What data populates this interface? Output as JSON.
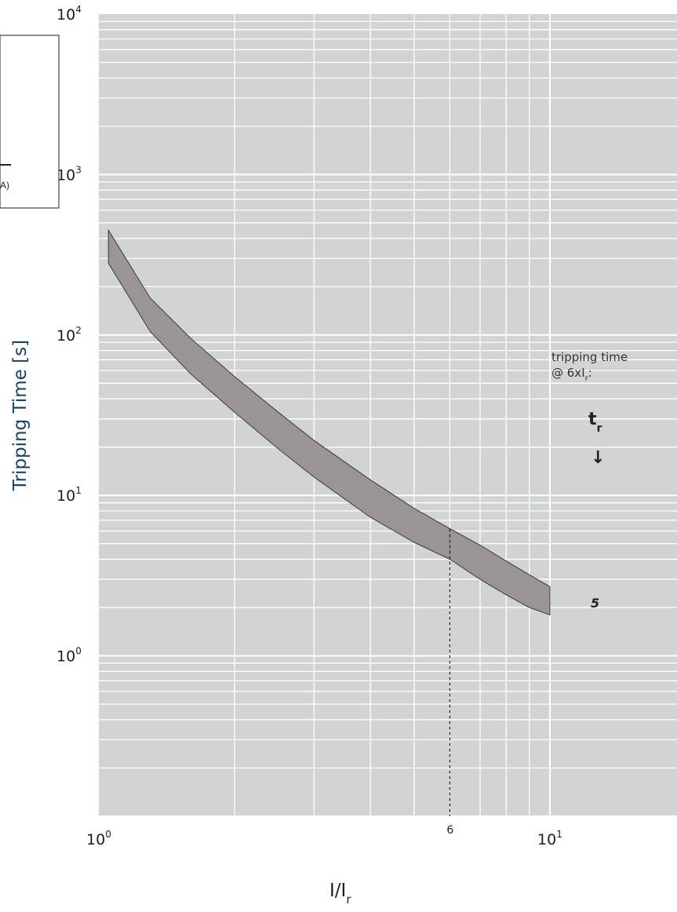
{
  "chart_data": {
    "type": "area",
    "title": "",
    "xscale": "log",
    "yscale": "log",
    "xlim": [
      1,
      28
    ],
    "ylim": [
      0.1,
      10000
    ],
    "grid": true,
    "xlabel": {
      "main": "I/I",
      "sub": "r"
    },
    "ylabel": "Tripping Time [s]",
    "x_ticks": [
      {
        "base": "10",
        "exp": "0",
        "value": 1
      },
      {
        "base": "10",
        "exp": "1",
        "value": 10
      }
    ],
    "y_ticks": [
      {
        "base": "10",
        "exp": "0",
        "value": 1
      },
      {
        "base": "10",
        "exp": "1",
        "value": 10
      },
      {
        "base": "10",
        "exp": "2",
        "value": 100
      },
      {
        "base": "10",
        "exp": "3",
        "value": 1000
      },
      {
        "base": "10",
        "exp": "4",
        "value": 10000
      }
    ],
    "band": {
      "name": "5",
      "color": "#9a9499",
      "upper": {
        "x": [
          1.05,
          1.3,
          1.6,
          2,
          2.5,
          3,
          4,
          5,
          6,
          7,
          8,
          9,
          10
        ],
        "y": [
          450,
          170,
          95,
          55,
          33,
          22,
          12.5,
          8.3,
          6.2,
          4.9,
          3.9,
          3.2,
          2.7
        ]
      },
      "lower": {
        "x": [
          1.05,
          1.3,
          1.6,
          2,
          2.5,
          3,
          4,
          5,
          6,
          7,
          8,
          9,
          10
        ],
        "y": [
          280,
          105,
          57,
          33,
          19.5,
          13,
          7.3,
          5.1,
          4.0,
          3.0,
          2.4,
          2.0,
          1.8
        ]
      }
    },
    "reference_line": {
      "x": 6,
      "y_top": 6.2,
      "label": "6"
    },
    "annotation": {
      "line1": "tripping time",
      "line2_prefix": "@ 6xI",
      "line2_sub": "r",
      "line2_suffix": ":",
      "symbol_main": "t",
      "symbol_sub": "r",
      "arrow": "↓"
    },
    "trip_label": "5",
    "inset_fragment": "A)",
    "colors": {
      "plot_bg": "#d2d3d5",
      "grid": "#ffffff",
      "band_fill": "#9a9499",
      "band_stroke": "#3a3a3a",
      "ylabel": "#1a4360"
    }
  }
}
